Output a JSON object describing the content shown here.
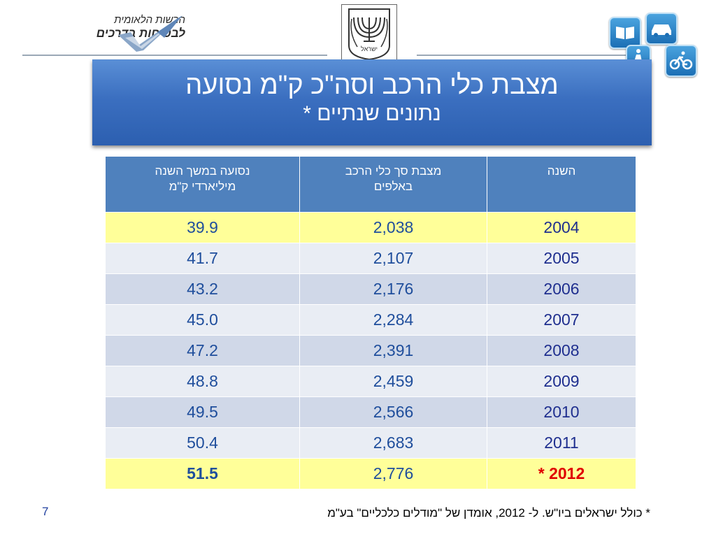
{
  "org": {
    "line1": "הרשות הלאומית",
    "line2": "לבטיחות בדרכים"
  },
  "emblem": {
    "caption": "ישראל"
  },
  "title": {
    "main": "מצבת כלי הרכב וסה\"כ ק\"מ נסועה",
    "sub": "נתונים שנתיים *"
  },
  "table": {
    "headers": {
      "year": "השנה",
      "fleet_line1": "מצבת סך כלי הרכב",
      "fleet_line2": "באלפים",
      "km_line1": "נסועה במשך השנה",
      "km_line2": "מיליארדי ק\"מ"
    },
    "rows": [
      {
        "year": "2004",
        "fleet": "2,038",
        "km": "39.9"
      },
      {
        "year": "2005",
        "fleet": "2,107",
        "km": "41.7"
      },
      {
        "year": "2006",
        "fleet": "2,176",
        "km": "43.2"
      },
      {
        "year": "2007",
        "fleet": "2,284",
        "km": "45.0"
      },
      {
        "year": "2008",
        "fleet": "2,391",
        "km": "47.2"
      },
      {
        "year": "2009",
        "fleet": "2,459",
        "km": "48.8"
      },
      {
        "year": "2010",
        "fleet": "2,566",
        "km": "49.5"
      },
      {
        "year": "2011",
        "fleet": "2,683",
        "km": "50.4"
      },
      {
        "year": "2012 *",
        "fleet": "2,776",
        "km": "51.5"
      }
    ]
  },
  "footnote": "* כולל ישראלים ביו\"ש. ל- 2012, אומדן של \"מודלים כלכליים\" בע\"מ",
  "page_number": "7",
  "icons": [
    "book-icon",
    "car-icon",
    "pedestrian-icon",
    "bicycle-icon"
  ],
  "colors": {
    "banner": "#3b6fc0",
    "header_row": "#4f81bd",
    "highlight_row": "#ffff99",
    "band_dark": "#d0d8e8",
    "band_light": "#e9edf4",
    "value_text": "#1f4e9c",
    "estimate_year": "#e00000"
  }
}
